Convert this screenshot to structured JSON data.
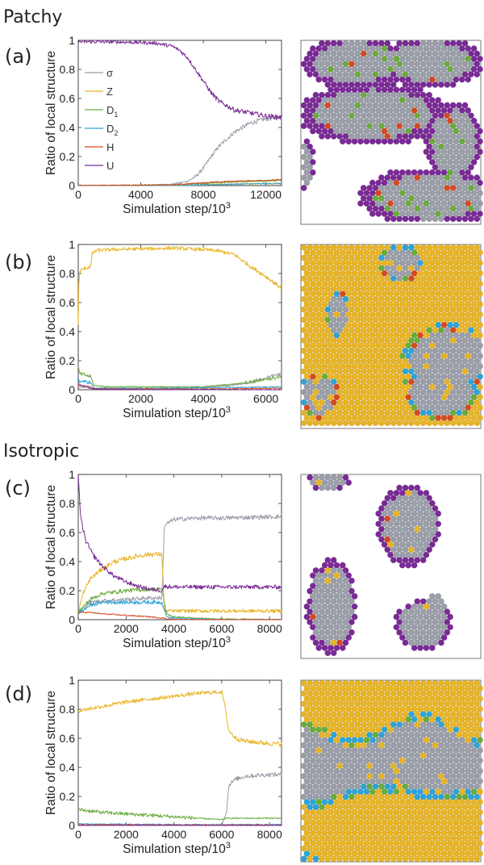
{
  "sections": {
    "patchy": "Patchy",
    "isotropic": "Isotropic"
  },
  "colors": {
    "sigma": "#9a9ea8",
    "Z": "#e8b424",
    "D1": "#6aab3b",
    "D2": "#2fa3d6",
    "H": "#d6491f",
    "U": "#7a2a96"
  },
  "legend": [
    {
      "key": "sigma",
      "label": "σ"
    },
    {
      "key": "Z",
      "label": "Z"
    },
    {
      "key": "D1",
      "label": "D",
      "sub": "1"
    },
    {
      "key": "D2",
      "label": "D",
      "sub": "2"
    },
    {
      "key": "H",
      "label": "H"
    },
    {
      "key": "U",
      "label": "U"
    }
  ],
  "chart_data": [
    {
      "type": "line",
      "panel_label": "(a)",
      "section": "Patchy",
      "xlabel": "Simulation step/10",
      "xlabel_sup": "3",
      "ylabel": "Ratio of local structure",
      "xlim": [
        0,
        13000
      ],
      "ylim": [
        0,
        1
      ],
      "xticks": [
        "0",
        "4000",
        "8000",
        "12000"
      ],
      "yticks": [
        "0",
        "0.2",
        "0.4",
        "0.6",
        "0.8",
        "1"
      ],
      "legend_position": "top-left",
      "series": [
        {
          "name": "U",
          "x": [
            0,
            2000,
            4000,
            5000,
            6000,
            6500,
            7000,
            7500,
            8000,
            8500,
            9000,
            10000,
            11000,
            12000,
            13000
          ],
          "y": [
            0.99,
            0.99,
            0.985,
            0.98,
            0.96,
            0.93,
            0.88,
            0.8,
            0.72,
            0.64,
            0.58,
            0.52,
            0.5,
            0.48,
            0.47
          ]
        },
        {
          "name": "σ",
          "x": [
            0,
            4000,
            6000,
            7000,
            7500,
            8000,
            8500,
            9000,
            10000,
            11000,
            12000,
            13000
          ],
          "y": [
            0.0,
            0.0,
            0.01,
            0.03,
            0.06,
            0.12,
            0.2,
            0.27,
            0.37,
            0.43,
            0.46,
            0.47
          ]
        },
        {
          "name": "Z",
          "x": [
            0,
            6000,
            8000,
            10000,
            13000
          ],
          "y": [
            0.0,
            0.0,
            0.005,
            0.01,
            0.015
          ]
        },
        {
          "name": "D1",
          "x": [
            0,
            6000,
            8000,
            10000,
            13000
          ],
          "y": [
            0.0,
            0.005,
            0.015,
            0.025,
            0.035
          ]
        },
        {
          "name": "D2",
          "x": [
            0,
            6000,
            8000,
            10000,
            13000
          ],
          "y": [
            0.0,
            0.0,
            0.005,
            0.01,
            0.015
          ]
        },
        {
          "name": "H",
          "x": [
            0,
            6000,
            8000,
            10000,
            13000
          ],
          "y": [
            0.0,
            0.005,
            0.02,
            0.03,
            0.04
          ]
        }
      ]
    },
    {
      "type": "line",
      "panel_label": "(b)",
      "section": "Patchy",
      "xlabel": "Simulation step/10",
      "xlabel_sup": "3",
      "ylabel": "Ratio of local structure",
      "xlim": [
        0,
        6500
      ],
      "ylim": [
        0,
        1
      ],
      "xticks": [
        "0",
        "2000",
        "4000",
        "6000"
      ],
      "yticks": [
        "0",
        "0.2",
        "0.4",
        "0.6",
        "0.8",
        "1"
      ],
      "series": [
        {
          "name": "Z",
          "x": [
            0,
            20,
            60,
            150,
            400,
            450,
            600,
            1000,
            2000,
            3000,
            4000,
            4500,
            5000,
            5500,
            6000,
            6500
          ],
          "y": [
            0.45,
            0.75,
            0.82,
            0.83,
            0.85,
            0.94,
            0.96,
            0.965,
            0.97,
            0.975,
            0.965,
            0.955,
            0.93,
            0.85,
            0.78,
            0.7
          ]
        },
        {
          "name": "σ",
          "x": [
            0,
            500,
            1000,
            2000,
            3000,
            4000,
            5000,
            5500,
            6000,
            6500
          ],
          "y": [
            0.02,
            0.01,
            0.01,
            0.01,
            0.01,
            0.015,
            0.03,
            0.05,
            0.08,
            0.11
          ]
        },
        {
          "name": "D1",
          "x": [
            0,
            50,
            400,
            500,
            1000,
            2000,
            3000,
            4000,
            5000,
            6000,
            6500
          ],
          "y": [
            0.15,
            0.11,
            0.09,
            0.03,
            0.02,
            0.02,
            0.02,
            0.02,
            0.04,
            0.07,
            0.09
          ]
        },
        {
          "name": "D2",
          "x": [
            0,
            50,
            400,
            500,
            1000,
            3000,
            5000,
            6500
          ],
          "y": [
            0.06,
            0.06,
            0.05,
            0.01,
            0.01,
            0.01,
            0.015,
            0.02
          ]
        },
        {
          "name": "H",
          "x": [
            0,
            400,
            500,
            2000,
            4000,
            6500
          ],
          "y": [
            0.03,
            0.02,
            0.005,
            0.005,
            0.005,
            0.01
          ]
        },
        {
          "name": "U",
          "x": [
            0,
            100,
            500,
            2000,
            4000,
            6500
          ],
          "y": [
            0.04,
            0.03,
            0.005,
            0.0,
            0.0,
            0.0
          ]
        }
      ]
    },
    {
      "type": "line",
      "panel_label": "(c)",
      "section": "Isotropic",
      "xlabel": "Simulation step/10",
      "xlabel_sup": "3",
      "ylabel": "Ratio of local structure",
      "xlim": [
        0,
        8500
      ],
      "ylim": [
        0,
        1
      ],
      "xticks": [
        "0",
        "2000",
        "4000",
        "6000",
        "8000"
      ],
      "yticks": [
        "0",
        "0.2",
        "0.4",
        "0.6",
        "0.8",
        "1"
      ],
      "series": [
        {
          "name": "U",
          "x": [
            0,
            100,
            300,
            600,
            1000,
            1500,
            2000,
            2500,
            3000,
            3500,
            3600,
            4000,
            6000,
            8500
          ],
          "y": [
            1.0,
            0.7,
            0.55,
            0.45,
            0.37,
            0.3,
            0.26,
            0.23,
            0.21,
            0.2,
            0.23,
            0.225,
            0.225,
            0.225
          ]
        },
        {
          "name": "Z",
          "x": [
            0,
            200,
            500,
            1000,
            1500,
            2000,
            2500,
            3000,
            3500,
            3600,
            4000,
            8500
          ],
          "y": [
            0.05,
            0.18,
            0.28,
            0.35,
            0.4,
            0.42,
            0.44,
            0.45,
            0.45,
            0.06,
            0.06,
            0.06
          ]
        },
        {
          "name": "σ",
          "x": [
            0,
            500,
            1000,
            2000,
            3000,
            3500,
            3600,
            4000,
            5000,
            6000,
            8500
          ],
          "y": [
            0.05,
            0.12,
            0.13,
            0.14,
            0.15,
            0.15,
            0.65,
            0.69,
            0.7,
            0.7,
            0.71
          ]
        },
        {
          "name": "D1",
          "x": [
            0,
            500,
            1000,
            2000,
            3000,
            3500,
            3700,
            4000,
            5000,
            6000,
            8500
          ],
          "y": [
            0.05,
            0.14,
            0.18,
            0.2,
            0.21,
            0.21,
            0.04,
            0.02,
            0.01,
            0.005,
            0.0
          ]
        },
        {
          "name": "D2",
          "x": [
            0,
            500,
            1000,
            2000,
            3000,
            3500,
            3700,
            4000,
            6000,
            8500
          ],
          "y": [
            0.04,
            0.1,
            0.12,
            0.12,
            0.12,
            0.12,
            0.02,
            0.01,
            0.0,
            0.0
          ]
        },
        {
          "name": "H",
          "x": [
            0,
            500,
            1000,
            2000,
            3000,
            3600,
            4000,
            8500
          ],
          "y": [
            0.05,
            0.05,
            0.04,
            0.03,
            0.02,
            0.01,
            0.0,
            0.0
          ]
        }
      ]
    },
    {
      "type": "line",
      "panel_label": "(d)",
      "section": "Isotropic",
      "xlabel": "Simulation step/10",
      "xlabel_sup": "3",
      "ylabel": "Ratio of local structure",
      "xlim": [
        0,
        8500
      ],
      "ylim": [
        0,
        1
      ],
      "xticks": [
        "0",
        "2000",
        "4000",
        "6000",
        "8000"
      ],
      "yticks": [
        "0",
        "0.2",
        "0.4",
        "0.6",
        "0.8",
        "1"
      ],
      "series": [
        {
          "name": "Z",
          "x": [
            0,
            1000,
            2000,
            3000,
            4000,
            5000,
            6000,
            6100,
            6300,
            6600,
            7000,
            8000,
            8500
          ],
          "y": [
            0.79,
            0.82,
            0.85,
            0.87,
            0.89,
            0.91,
            0.92,
            0.85,
            0.65,
            0.6,
            0.58,
            0.565,
            0.56
          ]
        },
        {
          "name": "σ",
          "x": [
            0,
            2000,
            4000,
            6000,
            6200,
            6300,
            6600,
            7000,
            8000,
            8500
          ],
          "y": [
            0.0,
            0.0,
            0.0,
            0.0,
            0.1,
            0.28,
            0.32,
            0.34,
            0.35,
            0.35
          ]
        },
        {
          "name": "D1",
          "x": [
            0,
            500,
            1000,
            2000,
            3000,
            4000,
            5000,
            6000,
            6200,
            7000,
            8500
          ],
          "y": [
            0.11,
            0.1,
            0.09,
            0.08,
            0.07,
            0.06,
            0.05,
            0.04,
            0.05,
            0.05,
            0.05
          ]
        },
        {
          "name": "D2",
          "x": [
            0,
            2000,
            4000,
            6000,
            8500
          ],
          "y": [
            0.01,
            0.008,
            0.006,
            0.006,
            0.006
          ]
        },
        {
          "name": "H",
          "x": [
            0,
            2000,
            4000,
            6000,
            8500
          ],
          "y": [
            0.005,
            0.004,
            0.003,
            0.003,
            0.003
          ]
        },
        {
          "name": "U",
          "x": [
            0,
            2000,
            4000,
            6000,
            8500
          ],
          "y": [
            0.0,
            0.0,
            0.0,
            0.0,
            0.0
          ]
        }
      ]
    }
  ]
}
